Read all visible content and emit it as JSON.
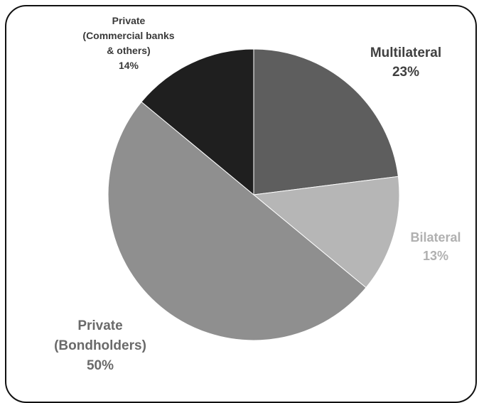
{
  "chart_data": {
    "type": "pie",
    "slices": [
      {
        "label_lines": [
          "Multilateral"
        ],
        "value_text": "23%",
        "value": 23,
        "color": "#5e5e5e",
        "label_color": "#404040"
      },
      {
        "label_lines": [
          "Bilateral"
        ],
        "value_text": "13%",
        "value": 13,
        "color": "#b6b6b6",
        "label_color": "#b0b0b0"
      },
      {
        "label_lines": [
          "Private",
          "(Bondholders)"
        ],
        "value_text": "50%",
        "value": 50,
        "color": "#8f8f8f",
        "label_color": "#6a6a6a"
      },
      {
        "label_lines": [
          "Private",
          "(Commercial banks",
          "& others)"
        ],
        "value_text": "14%",
        "value": 14,
        "color": "#1f1f1f",
        "label_color": "#3a3a3a"
      }
    ]
  }
}
